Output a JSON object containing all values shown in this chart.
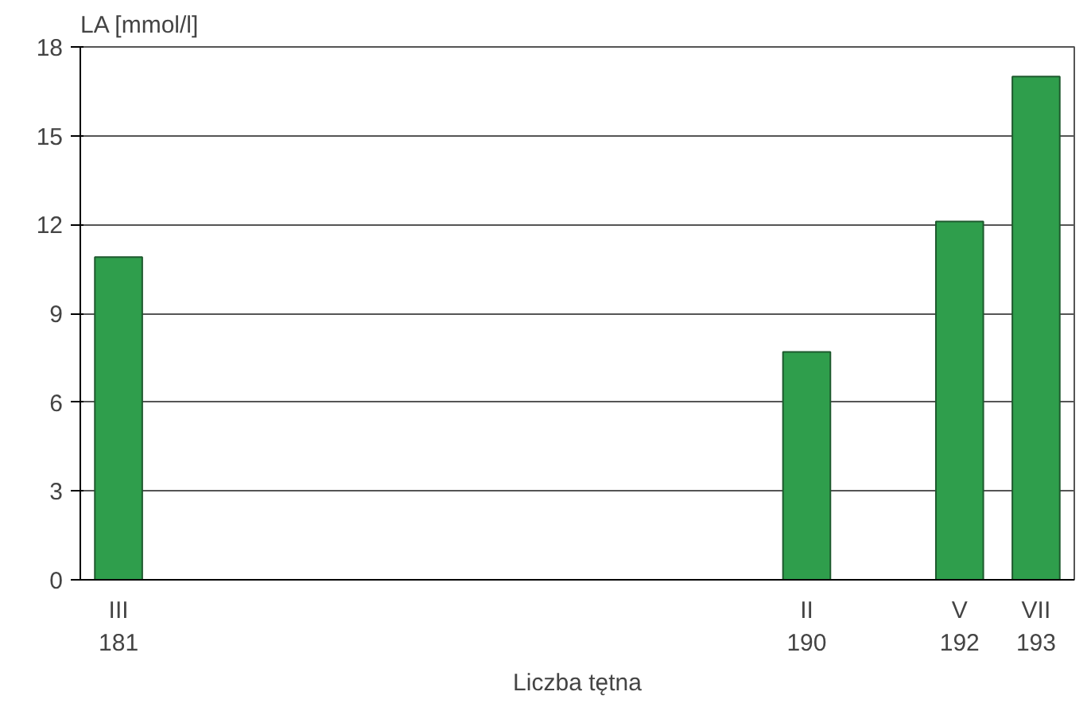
{
  "chart_data": {
    "type": "bar",
    "ylabel": "LA  [mmol/l]",
    "xlabel": "Liczba tętna",
    "categories": [
      "III\n181",
      null,
      null,
      null,
      null,
      null,
      null,
      null,
      null,
      "II\n190",
      null,
      "V\n192",
      "VII\n193"
    ],
    "values": [
      10.9,
      null,
      null,
      null,
      null,
      null,
      null,
      null,
      null,
      7.7,
      null,
      12.1,
      17.0
    ],
    "color": "#2f9e4c",
    "ylim": [
      0,
      18
    ],
    "yticks": [
      0,
      3,
      6,
      9,
      12,
      15,
      18
    ],
    "grid": "y"
  }
}
